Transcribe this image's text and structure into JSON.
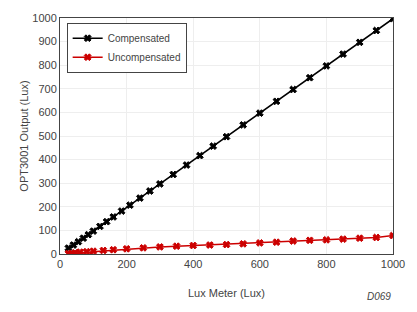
{
  "chart_data": {
    "type": "line",
    "x_label": "Lux Meter (Lux)",
    "y_label": "OPT3001 Output (Lux)",
    "series": [
      {
        "name": "Compensated",
        "color": "#000000",
        "marker": "x",
        "x": [
          25,
          40,
          55,
          70,
          85,
          100,
          120,
          140,
          160,
          185,
          210,
          240,
          270,
          300,
          340,
          380,
          420,
          460,
          500,
          550,
          600,
          650,
          700,
          750,
          800,
          850,
          900,
          950,
          1000
        ],
        "values": [
          25,
          38,
          52,
          67,
          82,
          97,
          117,
          137,
          157,
          182,
          207,
          237,
          267,
          297,
          337,
          377,
          417,
          457,
          497,
          547,
          597,
          647,
          697,
          747,
          797,
          847,
          897,
          947,
          997
        ]
      },
      {
        "name": "Uncompensated",
        "color": "#cc0000",
        "marker": "x",
        "x": [
          25,
          35,
          45,
          60,
          80,
          100,
          130,
          160,
          200,
          250,
          300,
          350,
          400,
          450,
          500,
          550,
          600,
          650,
          700,
          750,
          800,
          850,
          900,
          950,
          1000
        ],
        "values": [
          2,
          3,
          5,
          8,
          10,
          12,
          15,
          18,
          22,
          26,
          30,
          33,
          36,
          38,
          40,
          43,
          47,
          50,
          55,
          58,
          60,
          63,
          67,
          70,
          78
        ]
      }
    ],
    "xlim": [
      0,
      1000
    ],
    "ylim": [
      0,
      1000
    ],
    "xticks": [
      0,
      200,
      400,
      600,
      800,
      1000
    ],
    "yticks": [
      0,
      100,
      200,
      300,
      400,
      500,
      600,
      700,
      800,
      900,
      1000
    ],
    "grid": true,
    "legend": "upper left",
    "annotations": [
      "D069"
    ]
  }
}
